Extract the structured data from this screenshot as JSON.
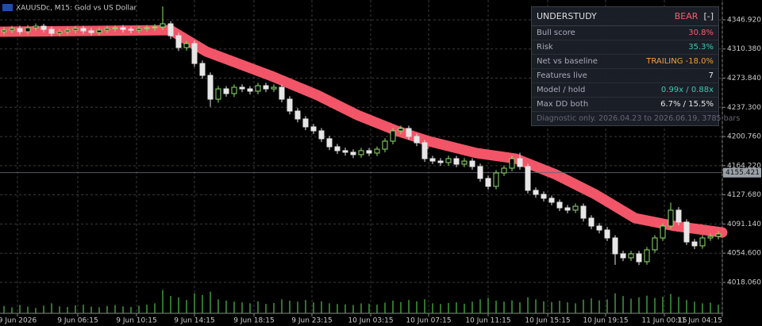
{
  "chart_data": {
    "type": "candlestick",
    "title": "XAUUSDc, M15:  Gold vs US Dollar",
    "xlim": [
      0,
      91
    ],
    "xticks": [
      {
        "value": 2.2,
        "label": "9 Jun 2026"
      },
      {
        "value": 9.8,
        "label": "9 Jun 06:15"
      },
      {
        "value": 17.2,
        "label": "9 Jun 10:15"
      },
      {
        "value": 24.5,
        "label": "9 Jun 14:15"
      },
      {
        "value": 32,
        "label": "9 Jun 18:15"
      },
      {
        "value": 39.3,
        "label": "9 Jun 23:15"
      },
      {
        "value": 46.7,
        "label": "10 Jun 03:15"
      },
      {
        "value": 54,
        "label": "10 Jun 07:15"
      },
      {
        "value": 61.5,
        "label": "10 Jun 11:15"
      },
      {
        "value": 69,
        "label": "10 Jun 15:15"
      },
      {
        "value": 76.3,
        "label": "10 Jun 19:15"
      },
      {
        "value": 83.7,
        "label": "11 Jun 00:15"
      },
      {
        "value": 91,
        "label": "11 Jun 04:15"
      }
    ],
    "ylim": [
      3979.3,
      4371.7
    ],
    "yticks": [
      {
        "value": 4346.92,
        "label": "4346.920"
      },
      {
        "value": 4310.38,
        "label": "4310.380"
      },
      {
        "value": 4273.84,
        "label": "4273.840"
      },
      {
        "value": 4237.3,
        "label": "4237.300"
      },
      {
        "value": 4200.76,
        "label": "4200.760"
      },
      {
        "value": 4164.22,
        "label": "4164.220"
      },
      {
        "value": 4127.68,
        "label": "4127.680"
      },
      {
        "value": 4091.14,
        "label": "4091.140"
      },
      {
        "value": 4054.6,
        "label": "4054.600"
      },
      {
        "value": 4018.06,
        "label": "4018.060"
      }
    ],
    "grid": true,
    "up_color": "#8fe06a",
    "down_color": "#e6e6e6",
    "open": [
      4332.0,
      4333.9,
      4335.9,
      4332.0,
      4336.9,
      4338.9,
      4334.9,
      4330.0,
      4332.0,
      4333.9,
      4335.9,
      4333.0,
      4331.0,
      4333.9,
      4335.9,
      4336.9,
      4334.9,
      4333.9,
      4335.9,
      4336.9,
      4337.9,
      4341.9,
      4327.0,
      4312.1,
      4317.1,
      4292.2,
      4277.3,
      4247.5,
      4260.4,
      4254.5,
      4262.4,
      4260.4,
      4257.5,
      4264.4,
      4260.4,
      4262.4,
      4247.5,
      4232.6,
      4222.7,
      4212.8,
      4207.8,
      4197.9,
      4187.9,
      4183.0,
      4181.0,
      4178.0,
      4183.0,
      4180.0,
      4184.9,
      4194.9,
      4207.8,
      4210.8,
      4200.8,
      4192.9,
      4173.0,
      4170.0,
      4168.1,
      4173.0,
      4166.1,
      4170.0,
      4163.1,
      4148.2,
      4138.3,
      4155.1,
      4161.1,
      4173.0,
      4163.1,
      4133.3,
      4128.3,
      4123.4,
      4118.4,
      4111.4,
      4108.5,
      4113.4,
      4098.5,
      4088.6,
      4083.6,
      4073.7,
      4053.8,
      4048.8,
      4053.8,
      4043.9,
      4058.8,
      4073.7,
      4088.6,
      4108.5,
      4093.6,
      4068.7,
      4063.8,
      4073.7,
      4075.7
    ],
    "high": [
      4337.5,
      4339.4,
      4339.5,
      4340.4,
      4342.3,
      4341.9,
      4338.4,
      4335.6,
      4337.4,
      4339.4,
      4339.3,
      4336.5,
      4337.3,
      4339.5,
      4340.2,
      4340.4,
      4338.3,
      4339.3,
      4340.3,
      4341.4,
      4363.8,
      4345.3,
      4330.6,
      4320.5,
      4320.9,
      4296.0,
      4281.0,
      4264.1,
      4263.9,
      4266.0,
      4266.2,
      4263.8,
      4268.1,
      4268.0,
      4266.1,
      4265.9,
      4251.2,
      4236.4,
      4226.3,
      4216.5,
      4211.4,
      4201.6,
      4191.5,
      4186.8,
      4184.7,
      4186.6,
      4186.5,
      4188.3,
      4198.6,
      4211.3,
      4214.5,
      4214.2,
      4204.3,
      4196.4,
      4176.6,
      4173.8,
      4176.9,
      4176.5,
      4173.7,
      4173.5,
      4166.8,
      4152.0,
      4158.7,
      4164.6,
      4176.8,
      4180.3,
      4166.9,
      4137.0,
      4131.9,
      4126.8,
      4121.9,
      4114.9,
      4117.0,
      4116.9,
      4102.1,
      4092.3,
      4087.4,
      4077.1,
      4057.6,
      4057.5,
      4057.5,
      4062.4,
      4077.3,
      4092.1,
      4118.0,
      4112.3,
      4097.2,
      4072.4,
      4077.3,
      4079.4,
      4082.4
    ],
    "low": [
      4328.1,
      4330.2,
      4328.3,
      4328.5,
      4333.0,
      4331.2,
      4326.1,
      4326.3,
      4328.2,
      4330.0,
      4329.2,
      4327.3,
      4327.1,
      4330.2,
      4332.1,
      4331.0,
      4330.1,
      4330.0,
      4332.1,
      4333.0,
      4334.0,
      4322.8,
      4307.9,
      4308.2,
      4288.0,
      4273.1,
      4238.0,
      4243.2,
      4250.6,
      4250.3,
      4256.2,
      4253.4,
      4253.6,
      4256.3,
      4256.5,
      4243.6,
      4228.4,
      4218.5,
      4208.6,
      4203.9,
      4193.8,
      4183.7,
      4178.9,
      4176.8,
      4173.8,
      4174.1,
      4176.2,
      4176.1,
      4180.8,
      4190.9,
      4203.6,
      4196.7,
      4188.7,
      4168.9,
      4166.2,
      4164.0,
      4164.2,
      4162.2,
      4162.3,
      4159.2,
      4144.0,
      4134.1,
      4134.5,
      4151.3,
      4157.3,
      4159.2,
      4129.4,
      4124.1,
      4119.2,
      4114.6,
      4107.3,
      4104.5,
      4104.7,
      4094.3,
      4084.7,
      4079.4,
      4069.8,
      4040.0,
      4044.6,
      4044.9,
      4039.8,
      4040.1,
      4055.0,
      4069.9,
      4084.7,
      4089.4,
      4064.9,
      4059.6,
      4060.0,
      4069.9,
      4071.8
    ],
    "close": [
      4333.9,
      4335.9,
      4332.0,
      4336.9,
      4338.9,
      4334.9,
      4330.0,
      4332.0,
      4333.9,
      4335.9,
      4333.0,
      4331.0,
      4333.9,
      4335.9,
      4336.9,
      4334.9,
      4333.9,
      4335.9,
      4336.9,
      4337.9,
      4341.9,
      4327.0,
      4312.1,
      4317.1,
      4292.2,
      4277.3,
      4247.5,
      4260.4,
      4254.5,
      4262.4,
      4260.4,
      4257.5,
      4264.4,
      4260.4,
      4262.4,
      4247.5,
      4232.6,
      4222.7,
      4212.8,
      4207.8,
      4197.9,
      4187.9,
      4183.0,
      4181.0,
      4178.0,
      4183.0,
      4180.0,
      4184.9,
      4194.9,
      4207.8,
      4210.8,
      4200.8,
      4192.9,
      4173.0,
      4170.0,
      4168.1,
      4173.0,
      4166.1,
      4170.0,
      4163.1,
      4148.2,
      4138.3,
      4155.1,
      4161.1,
      4173.0,
      4163.1,
      4133.3,
      4128.3,
      4123.4,
      4118.4,
      4111.4,
      4108.5,
      4113.4,
      4098.5,
      4088.6,
      4083.6,
      4073.7,
      4053.8,
      4048.8,
      4053.8,
      4043.9,
      4058.8,
      4073.7,
      4088.6,
      4108.5,
      4093.6,
      4068.7,
      4063.8,
      4073.7,
      4075.7,
      4078.6
    ],
    "volume_lim": [
      0,
      1000
    ],
    "volume": [
      220,
      180,
      250,
      200,
      160,
      230,
      300,
      210,
      190,
      240,
      260,
      200,
      180,
      220,
      250,
      210,
      190,
      230,
      260,
      300,
      700,
      520,
      480,
      400,
      600,
      550,
      650,
      420,
      380,
      350,
      330,
      300,
      360,
      280,
      310,
      420,
      380,
      350,
      400,
      330,
      360,
      300,
      280,
      270,
      250,
      300,
      290,
      260,
      320,
      380,
      340,
      400,
      360,
      420,
      300,
      280,
      310,
      330,
      290,
      350,
      420,
      460,
      380,
      350,
      390,
      330,
      480,
      420,
      360,
      340,
      380,
      330,
      300,
      410,
      450,
      390,
      420,
      600,
      520,
      440,
      480,
      530,
      460,
      500,
      580,
      490,
      400,
      350,
      300,
      320,
      260
    ],
    "ribbon": {
      "name": "UNDERSTUDY",
      "color": "#ff5a6e",
      "x": [
        0,
        21.5,
        26,
        34,
        40,
        45,
        50,
        54,
        60,
        65,
        70,
        75,
        80,
        85,
        91
      ],
      "values": [
        4332.0,
        4333.9,
        4307.1,
        4277.3,
        4252.5,
        4227.7,
        4207.8,
        4194.9,
        4180.0,
        4173.0,
        4153.2,
        4128.3,
        4098.5,
        4088.6,
        4080.6
      ]
    },
    "current_price": 4155.421
  },
  "panel": {
    "title": "UNDERSTUDY",
    "state": "BEAR",
    "button": "[-]",
    "rows": [
      {
        "label": "Bull score",
        "value": "30.8%",
        "color": "#ff5a6e"
      },
      {
        "label": "Risk",
        "value": "35.3%",
        "color": "#3cc8b0"
      },
      {
        "label": "Net vs baseline",
        "value": "TRAILING -18.0%",
        "color": "#f0a040"
      },
      {
        "label": "Features live",
        "value": "7",
        "color": "#e6e6e6"
      },
      {
        "label": "Model / hold",
        "value": "0.99x / 0.88x",
        "color": "#3cc8b0"
      },
      {
        "label": "Max DD both",
        "value": "6.7% / 15.5%",
        "color": "#e6e6e6"
      }
    ],
    "footer": "Diagnostic only. 2026.04.23 to 2026.06.19, 3785 bars"
  }
}
